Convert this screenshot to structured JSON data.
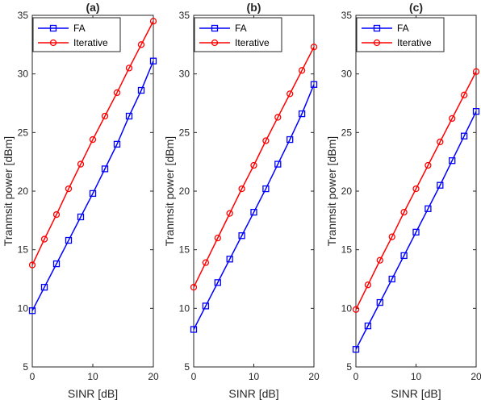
{
  "chart_data": [
    {
      "type": "line",
      "title": "(a)",
      "xlabel": "SINR [dB]",
      "ylabel": "Tranmsit power [dBm]",
      "xlim": [
        0,
        20
      ],
      "ylim": [
        5,
        35
      ],
      "xticks": [
        0,
        10,
        20
      ],
      "yticks": [
        5,
        10,
        15,
        20,
        25,
        30,
        35
      ],
      "grid": false,
      "legend_position": "top-left",
      "x": [
        0,
        2,
        4,
        6,
        8,
        10,
        12,
        14,
        16,
        18,
        20
      ],
      "series": [
        {
          "name": "FA",
          "color": "#0000ff",
          "marker": "square",
          "values": [
            9.8,
            11.8,
            13.8,
            15.8,
            17.8,
            19.8,
            21.9,
            24.0,
            26.4,
            28.6,
            31.1
          ]
        },
        {
          "name": "Iterative",
          "color": "#ff0000",
          "marker": "circle",
          "values": [
            13.7,
            15.9,
            18.0,
            20.2,
            22.3,
            24.4,
            26.4,
            28.4,
            30.5,
            32.5,
            34.5
          ]
        }
      ]
    },
    {
      "type": "line",
      "title": "(b)",
      "xlabel": "SINR [dB]",
      "ylabel": "Tranmsit power [dBm]",
      "xlim": [
        0,
        20
      ],
      "ylim": [
        5,
        35
      ],
      "xticks": [
        0,
        10,
        20
      ],
      "yticks": [
        5,
        10,
        15,
        20,
        25,
        30,
        35
      ],
      "grid": false,
      "legend_position": "top-left",
      "x": [
        0,
        2,
        4,
        6,
        8,
        10,
        12,
        14,
        16,
        18,
        20
      ],
      "series": [
        {
          "name": "FA",
          "color": "#0000ff",
          "marker": "square",
          "values": [
            8.2,
            10.2,
            12.2,
            14.2,
            16.2,
            18.2,
            20.2,
            22.3,
            24.4,
            26.6,
            29.1
          ]
        },
        {
          "name": "Iterative",
          "color": "#ff0000",
          "marker": "circle",
          "values": [
            11.8,
            13.9,
            16.0,
            18.1,
            20.2,
            22.2,
            24.3,
            26.3,
            28.3,
            30.3,
            32.3
          ]
        }
      ]
    },
    {
      "type": "line",
      "title": "(c)",
      "xlabel": "SINR [dB]",
      "ylabel": "Tranmsit power [dBm]",
      "xlim": [
        0,
        20
      ],
      "ylim": [
        5,
        35
      ],
      "xticks": [
        0,
        10,
        20
      ],
      "yticks": [
        5,
        10,
        15,
        20,
        25,
        30,
        35
      ],
      "grid": false,
      "legend_position": "top-left",
      "x": [
        0,
        2,
        4,
        6,
        8,
        10,
        12,
        14,
        16,
        18,
        20
      ],
      "series": [
        {
          "name": "FA",
          "color": "#0000ff",
          "marker": "square",
          "values": [
            6.5,
            8.5,
            10.5,
            12.5,
            14.5,
            16.5,
            18.5,
            20.5,
            22.6,
            24.7,
            26.8
          ]
        },
        {
          "name": "Iterative",
          "color": "#ff0000",
          "marker": "circle",
          "values": [
            9.9,
            12.0,
            14.1,
            16.1,
            18.2,
            20.2,
            22.2,
            24.2,
            26.2,
            28.2,
            30.2
          ]
        }
      ]
    }
  ]
}
